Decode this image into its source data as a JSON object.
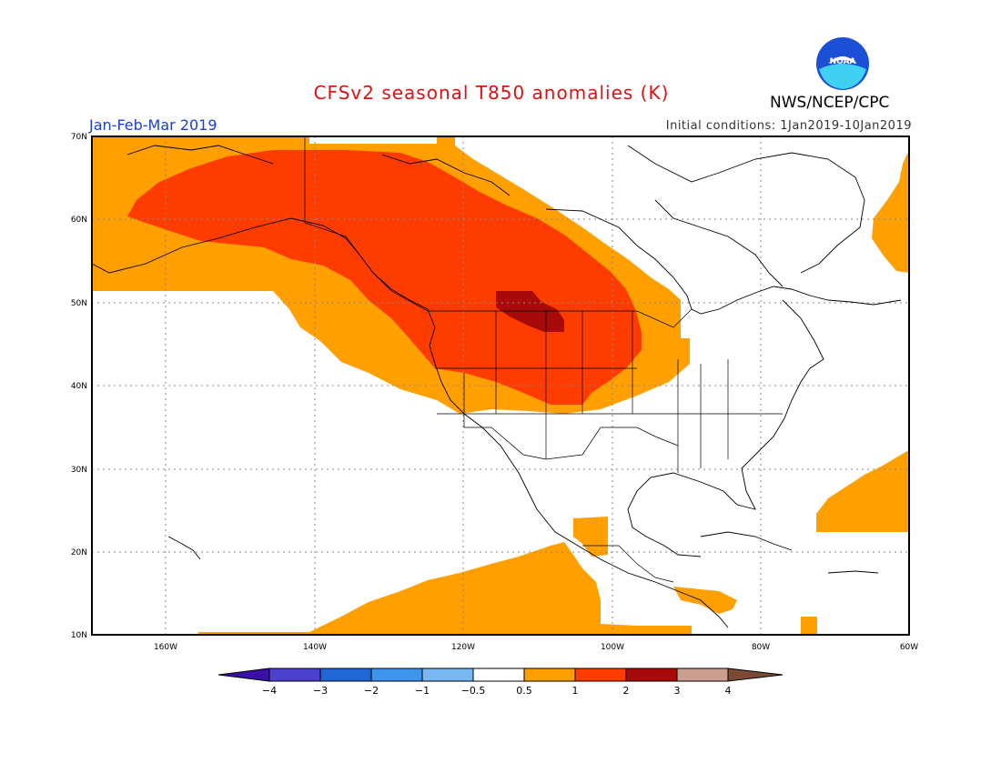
{
  "header": {
    "title": "CFSv2 seasonal T850 anomalies (K)",
    "season": "Jan-Feb-Mar 2019",
    "initial_conditions": "Initial conditions: 1Jan2019-10Jan2019",
    "organization": "NWS/NCEP/CPC",
    "logo_text": "NOAA"
  },
  "map": {
    "lat_labels": [
      "70N",
      "60N",
      "50N",
      "40N",
      "30N",
      "20N",
      "10N"
    ],
    "lon_labels": [
      "160W",
      "140W",
      "120W",
      "100W",
      "80W",
      "60W"
    ]
  },
  "legend": {
    "labels": [
      "−4",
      "−3",
      "−2",
      "−1",
      "−0.5",
      "0.5",
      "1",
      "2",
      "3",
      "4"
    ],
    "colors": {
      "lt_neg4": "#3a0fa8",
      "neg4_neg3": "#4b40d0",
      "neg3_neg2": "#1f66d6",
      "neg2_neg1": "#3f94ee",
      "neg1_neg05": "#78b8f2",
      "neutral": "#ffffff",
      "p05_1": "#ff9f00",
      "p1_2": "#ff3c00",
      "p2_3": "#a80a0a",
      "p3_4": "#c9a090",
      "gt4": "#7a4a35"
    }
  }
}
